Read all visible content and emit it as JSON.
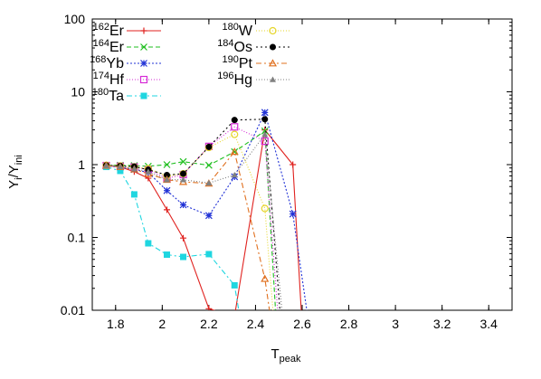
{
  "chart_data": {
    "type": "line",
    "xlabel": "T",
    "xlabel_sub": "peak",
    "ylabel_parts": [
      "Y",
      "i",
      "/Y",
      "ini"
    ],
    "xlim": [
      1.7,
      3.5
    ],
    "ylim": [
      0.01,
      100
    ],
    "yscale": "log",
    "grid": false,
    "legend_placement": "top-left, two columns",
    "x_ticks": [
      "1.8",
      "2",
      "2.2",
      "2.4",
      "2.6",
      "2.8",
      "3",
      "3.2",
      "3.4"
    ],
    "y_ticks": [
      "0.01",
      "0.1",
      "1",
      "10",
      "100"
    ],
    "x_tick_values": [
      1.8,
      2.0,
      2.2,
      2.4,
      2.6,
      2.8,
      3.0,
      3.2,
      3.4
    ],
    "y_tick_values": [
      0.01,
      0.1,
      1,
      10,
      100
    ],
    "series": [
      {
        "name_mass": "162",
        "name_el": "Er",
        "color": "#e0221f",
        "dash": "",
        "marker": "plus",
        "x": [
          1.76,
          1.82,
          1.88,
          1.94,
          2.02,
          2.09,
          2.2,
          2.31,
          2.44,
          2.56,
          2.6
        ],
        "y": [
          0.97,
          0.93,
          0.8,
          0.65,
          0.24,
          0.098,
          0.0105,
          0.0082,
          3.0,
          1.0,
          0.006
        ]
      },
      {
        "name_mass": "164",
        "name_el": "Er",
        "color": "#1fbf1f",
        "dash": "5,3",
        "marker": "cross",
        "x": [
          1.76,
          1.82,
          1.88,
          1.94,
          2.02,
          2.09,
          2.2,
          2.31,
          2.44,
          2.49
        ],
        "y": [
          0.98,
          0.98,
          0.97,
          0.95,
          1.0,
          1.1,
          0.98,
          1.5,
          2.9,
          0.006
        ]
      },
      {
        "name_mass": "168",
        "name_el": "Yb",
        "color": "#2233d6",
        "dash": "2,2",
        "marker": "star",
        "x": [
          1.76,
          1.82,
          1.88,
          1.94,
          2.02,
          2.09,
          2.2,
          2.31,
          2.44,
          2.56,
          2.63
        ],
        "y": [
          0.96,
          0.92,
          0.86,
          0.78,
          0.44,
          0.28,
          0.2,
          0.68,
          5.2,
          0.21,
          0.006
        ]
      },
      {
        "name_mass": "174",
        "name_el": "Hf",
        "color": "#d62bd6",
        "dash": "1,2",
        "marker": "square-open",
        "x": [
          1.76,
          1.82,
          1.88,
          1.94,
          2.02,
          2.09,
          2.2,
          2.31,
          2.44,
          2.5
        ],
        "y": [
          0.97,
          0.95,
          0.93,
          0.85,
          0.65,
          0.73,
          1.78,
          3.3,
          2.1,
          0.006
        ]
      },
      {
        "name_mass": "180",
        "name_el": "Ta",
        "color": "#1fd6e0",
        "dash": "6,3,2,3",
        "marker": "square",
        "x": [
          1.76,
          1.82,
          1.88,
          1.94,
          2.02,
          2.09,
          2.2,
          2.31,
          2.34
        ],
        "y": [
          0.93,
          0.82,
          0.39,
          0.083,
          0.058,
          0.054,
          0.059,
          0.022,
          0.006
        ]
      },
      {
        "name_mass": "180",
        "name_el": "W",
        "color": "#e6d62a",
        "dash": "1,2",
        "marker": "circle-open",
        "x": [
          1.76,
          1.82,
          1.88,
          1.94,
          2.02,
          2.09,
          2.2,
          2.31,
          2.44,
          2.48
        ],
        "y": [
          0.98,
          0.96,
          0.93,
          0.88,
          0.7,
          0.75,
          1.72,
          2.6,
          0.25,
          0.006
        ]
      },
      {
        "name_mass": "184",
        "name_el": "Os",
        "color": "#000000",
        "dash": "2,3",
        "marker": "circle",
        "x": [
          1.76,
          1.82,
          1.88,
          1.94,
          2.02,
          2.09,
          2.2,
          2.31,
          2.44,
          2.51
        ],
        "y": [
          0.98,
          0.96,
          0.94,
          0.85,
          0.72,
          0.75,
          1.75,
          4.1,
          4.2,
          0.006
        ]
      },
      {
        "name_mass": "190",
        "name_el": "Pt",
        "color": "#e0701f",
        "dash": "6,3,2,3",
        "marker": "triangle-open",
        "x": [
          1.76,
          1.82,
          1.88,
          1.94,
          2.02,
          2.09,
          2.2,
          2.31,
          2.44,
          2.47
        ],
        "y": [
          0.97,
          0.93,
          0.86,
          0.75,
          0.62,
          0.58,
          0.55,
          1.5,
          0.027,
          0.006
        ]
      },
      {
        "name_mass": "196",
        "name_el": "Hg",
        "color": "#808080",
        "dash": "1,2",
        "marker": "triangle",
        "x": [
          1.76,
          1.82,
          1.88,
          1.94,
          2.02,
          2.09,
          2.2,
          2.31,
          2.44,
          2.52
        ],
        "y": [
          0.97,
          0.94,
          0.88,
          0.8,
          0.62,
          0.62,
          0.56,
          0.72,
          2.6,
          0.006
        ]
      }
    ]
  }
}
